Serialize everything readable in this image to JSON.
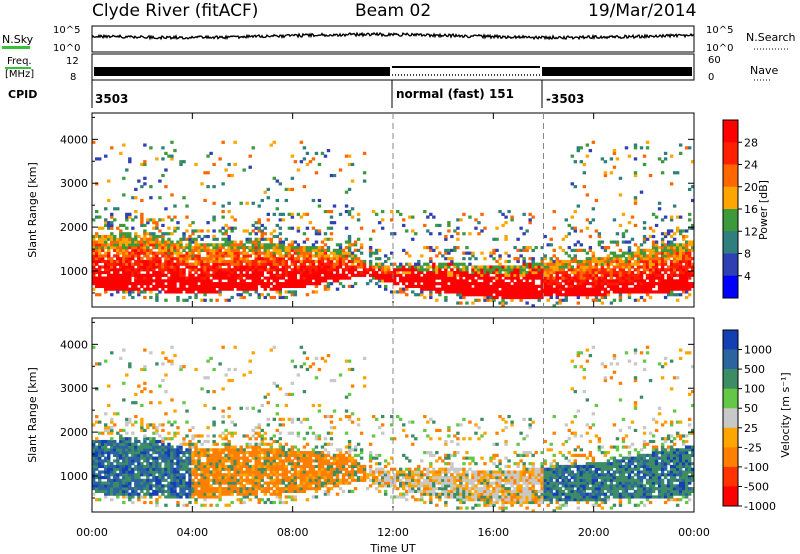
{
  "header": {
    "station": "Clyde River (fitACF)",
    "beam": "Beam 02",
    "date": "19/Mar/2014"
  },
  "top_panels": {
    "nsky_label": "N.Sky",
    "nsky_ticks": [
      "10^5",
      "10^0"
    ],
    "nsearch_label": "N.Search",
    "freq_label_1": "Freq.",
    "freq_label_2": "[MHz]",
    "freq_ticks": [
      "12",
      "8"
    ],
    "nave_label": "Nave",
    "nave_ticks": [
      "60",
      "0"
    ],
    "cpid_label": "CPID",
    "cpid_segments": [
      "3503",
      "normal (fast) 151",
      "-3503"
    ]
  },
  "colors": {
    "power_scale": [
      "#0000ff",
      "#2f3fb4",
      "#2f7f7f",
      "#3c9a3c",
      "#ffa500",
      "#ff6600",
      "#ff2000",
      "#ff0000"
    ],
    "velocity_scale": [
      "#1440b4",
      "#2c64a0",
      "#3c8c64",
      "#64c846",
      "#c8c8c8",
      "#ffa500",
      "#ff7f00",
      "#ff3200",
      "#ff0000"
    ]
  },
  "chart_data": [
    {
      "type": "heatmap",
      "title": "Power",
      "xlabel": "Time UT",
      "ylabel": "Slant Range [km]",
      "x_ticks": [
        "00:00",
        "04:00",
        "08:00",
        "12:00",
        "16:00",
        "20:00",
        "00:00"
      ],
      "x_range_hours": [
        0,
        24
      ],
      "y_ticks": [
        "1000",
        "2000",
        "3000",
        "4000"
      ],
      "ylim": [
        180,
        4600
      ],
      "colorbar_label": "Power [dB]",
      "colorbar_ticks": [
        "4",
        "8",
        "12",
        "16",
        "20",
        "24",
        "28"
      ],
      "colorbar_range": [
        0,
        32
      ],
      "dashed_markers_hours": [
        12,
        18
      ],
      "main_echo_band": {
        "x_hours": [
          0,
          2,
          4,
          6,
          8,
          10,
          11,
          12,
          14,
          16,
          18,
          20,
          22,
          24
        ],
        "y_low_km": [
          600,
          550,
          500,
          550,
          600,
          800,
          900,
          700,
          500,
          400,
          400,
          450,
          500,
          550
        ],
        "y_high_km": [
          1800,
          1900,
          1600,
          1700,
          1600,
          1500,
          1200,
          1100,
          1200,
          1100,
          1200,
          1300,
          1500,
          1700
        ]
      }
    },
    {
      "type": "heatmap",
      "title": "Velocity",
      "xlabel": "Time UT",
      "ylabel": "Slant Range [km]",
      "x_ticks": [
        "00:00",
        "04:00",
        "08:00",
        "12:00",
        "16:00",
        "20:00",
        "00:00"
      ],
      "x_range_hours": [
        0,
        24
      ],
      "y_ticks": [
        "1000",
        "2000",
        "3000",
        "4000"
      ],
      "ylim": [
        180,
        4600
      ],
      "colorbar_label": "Velocity [m s⁻¹]",
      "colorbar_ticks": [
        "1000",
        "500",
        "100",
        "50",
        "25",
        "-25",
        "-100",
        "-500",
        "-1000"
      ],
      "dashed_markers_hours": [
        12,
        18
      ],
      "dominant_by_interval": [
        {
          "from_hour": 0,
          "to_hour": 4,
          "velocity_class": "positive (>500)"
        },
        {
          "from_hour": 4,
          "to_hour": 11,
          "velocity_class": "negative (-100 to -500)"
        },
        {
          "from_hour": 11,
          "to_hour": 18,
          "velocity_class": "near zero (-25 to 25)"
        },
        {
          "from_hour": 18,
          "to_hour": 24,
          "velocity_class": "positive (100 to 500)"
        }
      ]
    }
  ]
}
